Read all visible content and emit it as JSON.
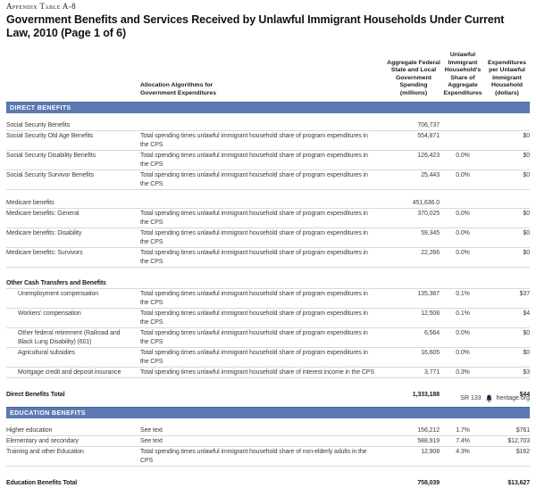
{
  "page": {
    "eyebrow": "Appendix Table A-8",
    "title": "Government Benefits and Services Received by Unlawful Immigrant Households Under Current Law, 2010 (Page 1 of 6)"
  },
  "colors": {
    "section_band_blue": "#5b79b2",
    "section_band_border": "#47659f",
    "row_divider": "#d9d9d9"
  },
  "table": {
    "columns": [
      {
        "label": ""
      },
      {
        "label": "Allocation Algorithms for Government Expenditures"
      },
      {
        "label": "Aggregate Federal State and Local Government Spending (millions)"
      },
      {
        "label": "Unlawful Immigrant Household's Share of Aggregate Expenditures"
      },
      {
        "label": "Expenditures per Unlawful Immigrant Household (dollars)"
      }
    ],
    "sections": [
      {
        "header": "DIRECT BENEFITS",
        "groups": [
          {
            "rows": [
              {
                "label": "Social Security Benefits",
                "algorithm": "",
                "spending": "706,737",
                "share": "",
                "per_household": "",
                "style": "parent"
              },
              {
                "label": "Social Security Old Age Benefits",
                "algorithm": "Total spending times unlawful immigrant household share of program expenditures in the CPS",
                "spending": "554,871",
                "share": "",
                "per_household": "$0",
                "style": ""
              },
              {
                "label": "Social Security Disability Benefits",
                "algorithm": "Total spending times unlawful immigrant household share of program expenditures in the CPS",
                "spending": "126,423",
                "share": "0.0%",
                "per_household": "$0",
                "style": ""
              },
              {
                "label": "Social Security Survivor Benefits",
                "algorithm": "Total spending times unlawful immigrant household share of program expenditures in the CPS",
                "spending": "25,443",
                "share": "0.0%",
                "per_household": "$0",
                "style": ""
              }
            ]
          },
          {
            "rows": [
              {
                "label": "Medicare benefits",
                "algorithm": "",
                "spending": "451,636.0",
                "share": "",
                "per_household": "",
                "style": "parent"
              },
              {
                "label": "Medicare benefits: General",
                "algorithm": "Total spending times unlawful immigrant household share of program expenditures in the CPS",
                "spending": "370,025",
                "share": "0.0%",
                "per_household": "$0",
                "style": ""
              },
              {
                "label": "Medicare benefits: Disability",
                "algorithm": "Total spending times unlawful immigrant household share of program expenditures in the CPS",
                "spending": "59,345",
                "share": "0.0%",
                "per_household": "$0",
                "style": ""
              },
              {
                "label": "Medicare benefits: Survivors",
                "algorithm": "Total spending times unlawful immigrant household share of program expenditures in the CPS",
                "spending": "22,266",
                "share": "0.0%",
                "per_household": "$0",
                "style": ""
              }
            ]
          },
          {
            "big_gap": true,
            "rows": [
              {
                "label": "Other Cash Transfers and Benefits",
                "algorithm": "",
                "spending": "",
                "share": "",
                "per_household": "",
                "style": "subhead"
              },
              {
                "label": "Unemployment compensation",
                "algorithm": "Total spending times unlawful immigrant household share of program expenditures in the CPS",
                "spending": "135,367",
                "share": "0.1%",
                "per_household": "$37",
                "style": "indent"
              },
              {
                "label": "Workers' compensation",
                "algorithm": "Total spending times unlawful immigrant household share of program expenditures in the CPS",
                "spending": "12,508",
                "share": "0.1%",
                "per_household": "$4",
                "style": "indent"
              },
              {
                "label": "Other federal retirement (Railroad and Black Lung Disability) (601)",
                "algorithm": "Total spending times unlawful immigrant household share of program expenditures in the CPS",
                "spending": "6,564",
                "share": "0.0%",
                "per_household": "$0",
                "style": "indent"
              },
              {
                "label": "Agricultural subsidies",
                "algorithm": "Total spending times unlawful immigrant household share of program expenditures in the CPS",
                "spending": "16,605",
                "share": "0.0%",
                "per_household": "$0",
                "style": "indent"
              },
              {
                "label": "Mortgage credit and deposit insurance",
                "algorithm": "Total spending times unlawful immigrant household share of interest income in the CPS",
                "spending": "3,771",
                "share": "0.3%",
                "per_household": "$3",
                "style": "indent"
              }
            ]
          }
        ],
        "total": {
          "label": "Direct Benefits Total",
          "spending": "1,333,188",
          "share": "",
          "per_household": "$44"
        }
      },
      {
        "header": "EDUCATION BENEFITS",
        "groups": [
          {
            "rows": [
              {
                "label": "Higher education",
                "algorithm": "See text",
                "spending": "156,212",
                "share": "1.7%",
                "per_household": "$761",
                "style": ""
              },
              {
                "label": "Elementary and secondary",
                "algorithm": "See text",
                "spending": "588,919",
                "share": "7.4%",
                "per_household": "$12,703",
                "style": ""
              },
              {
                "label": "Training and other Education",
                "algorithm": "Total spending times unlawful immigrant household share of non-elderly adults in the CPS",
                "spending": "12,908",
                "share": "4.3%",
                "per_household": "$162",
                "style": ""
              }
            ]
          }
        ],
        "total": {
          "label": "Education Benefits Total",
          "spending": "758,039",
          "share": "",
          "per_household": "$13,627"
        }
      }
    ]
  },
  "footer": {
    "report_id": "SR 133",
    "logo_icon": "heritage-bell-icon",
    "site": "heritage.org"
  }
}
